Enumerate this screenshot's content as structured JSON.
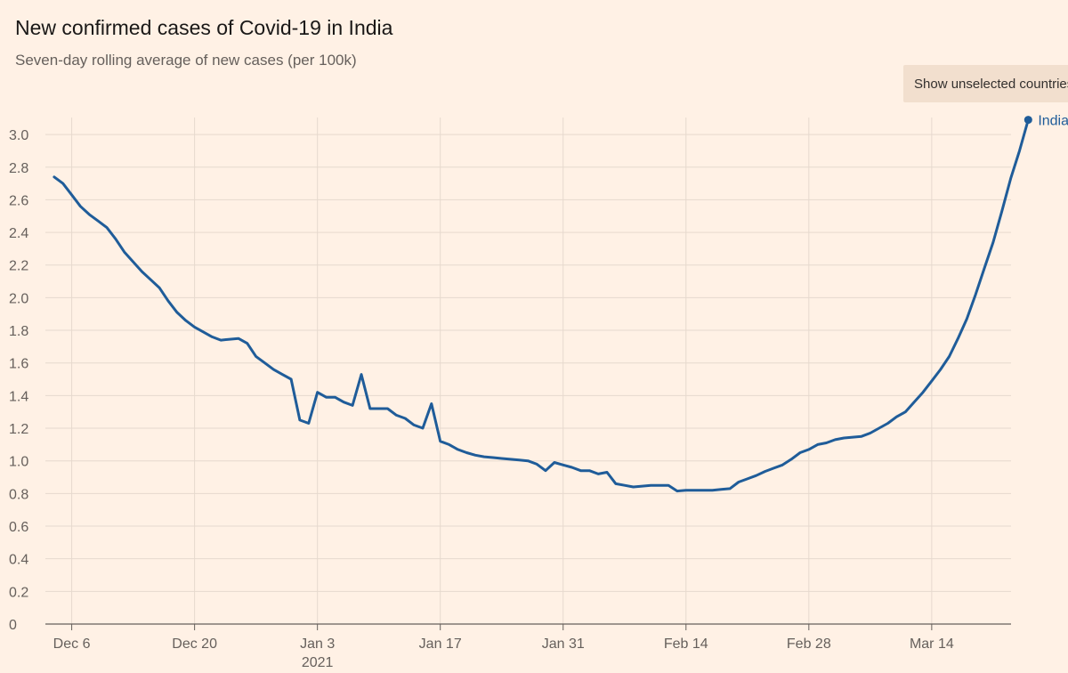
{
  "header": {
    "title": "New confirmed cases of Covid-19 in India",
    "subtitle": "Seven-day rolling average of new cases (per 100k)"
  },
  "controls": {
    "toggle_label": "Show unselected countries"
  },
  "colors": {
    "background": "#fff1e5",
    "grid": "#e6d9ce",
    "axis": "#66605c",
    "series": "#1f5c99"
  },
  "chart_data": {
    "type": "line",
    "title": "New confirmed cases of Covid-19 in India",
    "subtitle": "Seven-day rolling average of new cases (per 100k)",
    "xlabel": "",
    "ylabel": "",
    "ylim": [
      0,
      3.0
    ],
    "xlim": [
      -1,
      106
    ],
    "grid": true,
    "y_ticks": [
      {
        "value": 0,
        "label": "0"
      },
      {
        "value": 0.2,
        "label": "0.2"
      },
      {
        "value": 0.4,
        "label": "0.4"
      },
      {
        "value": 0.6,
        "label": "0.6"
      },
      {
        "value": 0.8,
        "label": "0.8"
      },
      {
        "value": 1.0,
        "label": "1.0"
      },
      {
        "value": 1.2,
        "label": "1.2"
      },
      {
        "value": 1.4,
        "label": "1.4"
      },
      {
        "value": 1.6,
        "label": "1.6"
      },
      {
        "value": 1.8,
        "label": "1.8"
      },
      {
        "value": 2.0,
        "label": "2.0"
      },
      {
        "value": 2.2,
        "label": "2.2"
      },
      {
        "value": 2.4,
        "label": "2.4"
      },
      {
        "value": 2.6,
        "label": "2.6"
      },
      {
        "value": 2.8,
        "label": "2.8"
      },
      {
        "value": 3.0,
        "label": "3.0"
      }
    ],
    "x_ticks": [
      {
        "day": 2,
        "label": "Dec 6"
      },
      {
        "day": 16,
        "label": "Dec 20"
      },
      {
        "day": 30,
        "label": "Jan 3",
        "sublabel": "2021"
      },
      {
        "day": 44,
        "label": "Jan 17"
      },
      {
        "day": 58,
        "label": "Jan 31"
      },
      {
        "day": 72,
        "label": "Feb 14"
      },
      {
        "day": 86,
        "label": "Feb 28"
      },
      {
        "day": 100,
        "label": "Mar 14"
      }
    ],
    "series": [
      {
        "name": "India",
        "start_date": "Dec 4 2020",
        "values": [
          2.74,
          2.7,
          2.63,
          2.56,
          2.51,
          2.47,
          2.43,
          2.36,
          2.28,
          2.22,
          2.16,
          2.11,
          2.06,
          1.98,
          1.91,
          1.86,
          1.82,
          1.79,
          1.76,
          1.74,
          1.745,
          1.75,
          1.72,
          1.64,
          1.6,
          1.56,
          1.53,
          1.5,
          1.25,
          1.23,
          1.42,
          1.39,
          1.39,
          1.36,
          1.34,
          1.53,
          1.32,
          1.32,
          1.32,
          1.28,
          1.26,
          1.22,
          1.2,
          1.35,
          1.12,
          1.1,
          1.07,
          1.05,
          1.035,
          1.025,
          1.02,
          1.015,
          1.01,
          1.005,
          1.0,
          0.98,
          0.94,
          0.99,
          0.975,
          0.96,
          0.94,
          0.94,
          0.92,
          0.93,
          0.86,
          0.85,
          0.84,
          0.845,
          0.85,
          0.85,
          0.85,
          0.815,
          0.82,
          0.82,
          0.82,
          0.82,
          0.825,
          0.83,
          0.87,
          0.89,
          0.91,
          0.935,
          0.955,
          0.975,
          1.01,
          1.05,
          1.07,
          1.1,
          1.11,
          1.13,
          1.14,
          1.145,
          1.15,
          1.17,
          1.2,
          1.23,
          1.27,
          1.3,
          1.36,
          1.42,
          1.49,
          1.56,
          1.64,
          1.75,
          1.87,
          2.02,
          2.18,
          2.34,
          2.53,
          2.73,
          2.9,
          3.09
        ]
      }
    ]
  }
}
